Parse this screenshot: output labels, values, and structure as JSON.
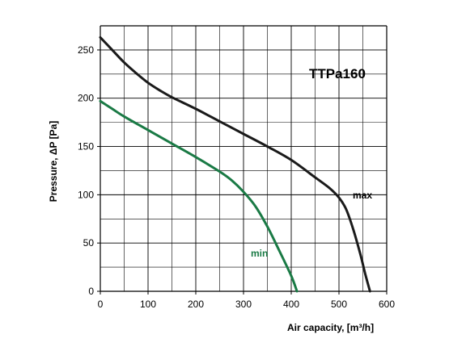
{
  "chart_data": {
    "type": "line",
    "title": "TTPa160",
    "xlabel": "Air capacity, [m³/h]",
    "ylabel": "Pressure, ΔP [Pa]",
    "xlim": [
      0,
      600
    ],
    "ylim": [
      0,
      275
    ],
    "x_ticks": [
      0,
      100,
      200,
      300,
      400,
      500,
      600
    ],
    "y_ticks": [
      0,
      50,
      100,
      150,
      200,
      250
    ],
    "grid": true,
    "series": [
      {
        "name": "max",
        "color": "#1a1a1a",
        "points": [
          [
            0,
            263
          ],
          [
            25,
            250
          ],
          [
            50,
            237
          ],
          [
            75,
            226
          ],
          [
            100,
            216
          ],
          [
            125,
            208
          ],
          [
            150,
            201
          ],
          [
            200,
            189
          ],
          [
            250,
            176
          ],
          [
            300,
            163
          ],
          [
            350,
            150
          ],
          [
            400,
            136
          ],
          [
            450,
            118
          ],
          [
            480,
            107
          ],
          [
            500,
            97
          ],
          [
            515,
            85
          ],
          [
            530,
            64
          ],
          [
            545,
            38
          ],
          [
            555,
            18
          ],
          [
            565,
            0
          ]
        ]
      },
      {
        "name": "min",
        "color": "#1a7a45",
        "points": [
          [
            0,
            197
          ],
          [
            25,
            189
          ],
          [
            50,
            181
          ],
          [
            100,
            167
          ],
          [
            150,
            153
          ],
          [
            200,
            139
          ],
          [
            250,
            124
          ],
          [
            275,
            115
          ],
          [
            300,
            103
          ],
          [
            325,
            88
          ],
          [
            350,
            67
          ],
          [
            375,
            42
          ],
          [
            400,
            16
          ],
          [
            412,
            0
          ]
        ]
      }
    ]
  }
}
